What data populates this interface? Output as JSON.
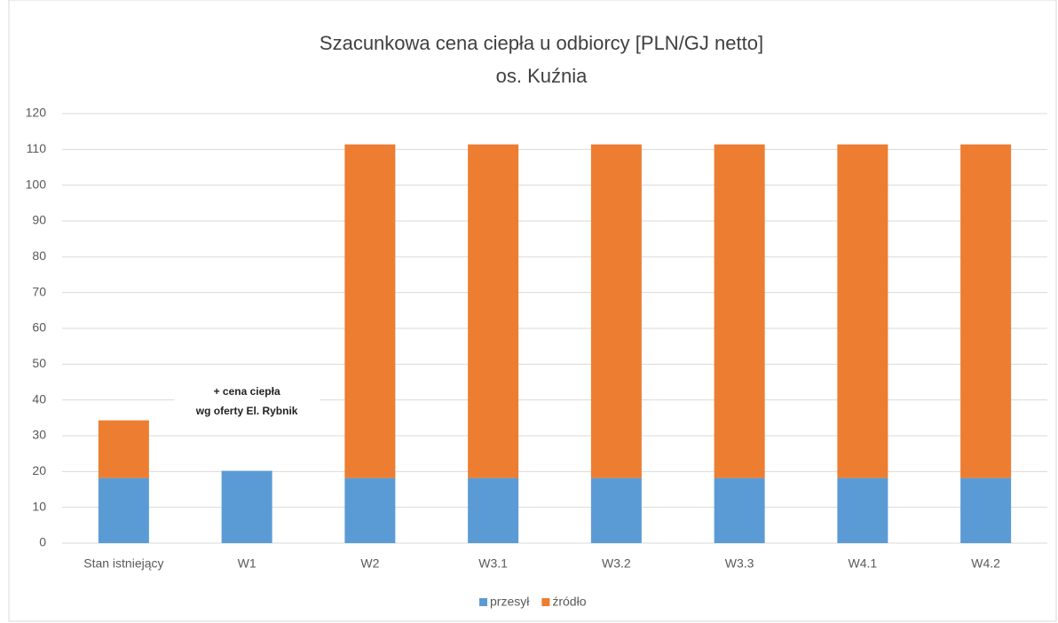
{
  "chart_data": {
    "type": "stacked_bar",
    "title": [
      "Szacunkowa cena ciepła u odbiorcy [PLN/GJ netto]",
      "os. Kuźnia"
    ],
    "categories": [
      "Stan istniejący",
      "W1",
      "W2",
      "W3.1",
      "W3.2",
      "W3.3",
      "W4.1",
      "W4.2"
    ],
    "series": [
      {
        "name": "przesył",
        "color": "#5b9bd5",
        "values": [
          18.2,
          20.2,
          18.2,
          18.2,
          18.2,
          18.2,
          18.2,
          18.2
        ]
      },
      {
        "name": "źródło",
        "color": "#ed7d31",
        "values": [
          16.1,
          null,
          93.2,
          93.2,
          93.2,
          93.2,
          93.2,
          93.2
        ]
      }
    ],
    "annotation": [
      "+ cena ciepła",
      "wg oferty El. Rybnik"
    ],
    "ylim": [
      0,
      120
    ],
    "yticks": [
      0,
      10,
      20,
      30,
      40,
      50,
      60,
      70,
      80,
      90,
      100,
      110,
      120
    ],
    "grid": true,
    "legend": "bottom"
  }
}
